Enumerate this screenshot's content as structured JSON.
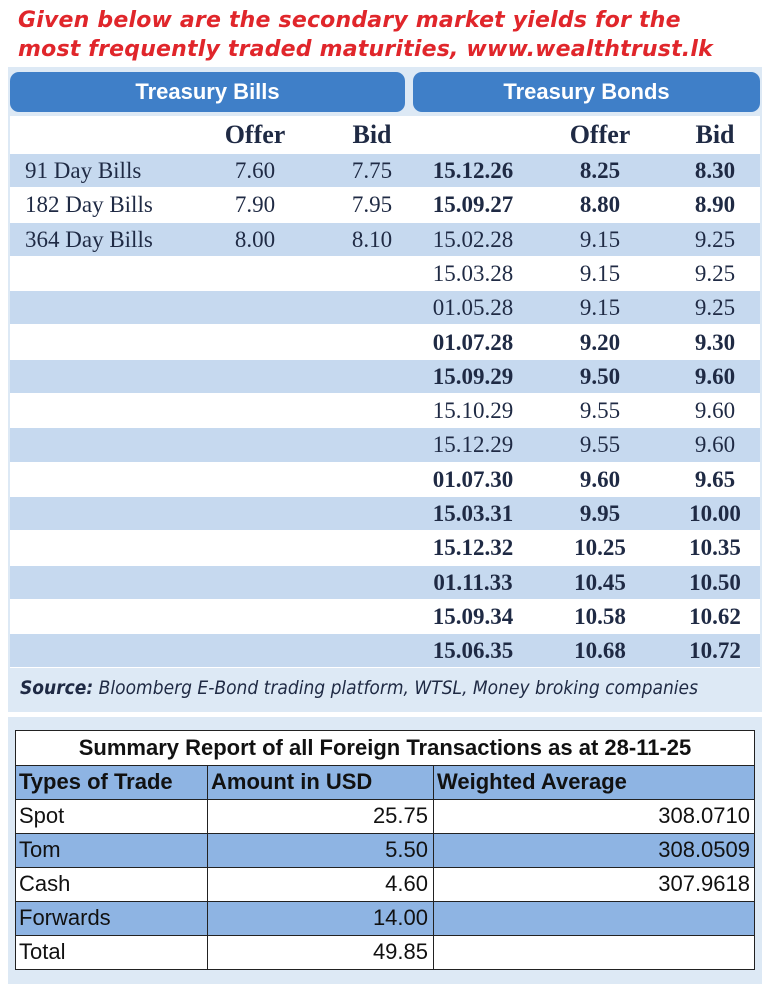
{
  "header": {
    "text": "Given below are the secondary market yields for the most frequently traded maturities, www.wealthtrust.lk"
  },
  "bills": {
    "title": "Treasury Bills",
    "columns": [
      "Offer",
      "Bid"
    ],
    "rows": [
      {
        "label": "91 Day Bills",
        "offer": "7.60",
        "bid": "7.75"
      },
      {
        "label": "182 Day Bills",
        "offer": "7.90",
        "bid": "7.95"
      },
      {
        "label": "364 Day Bills",
        "offer": "8.00",
        "bid": "8.10"
      }
    ]
  },
  "bonds": {
    "title": "Treasury Bonds",
    "columns": [
      "Offer",
      "Bid"
    ],
    "rows": [
      {
        "maturity": "15.12.26",
        "offer": "8.25",
        "bid": "8.30",
        "bold": true
      },
      {
        "maturity": "15.09.27",
        "offer": "8.80",
        "bid": "8.90",
        "bold": true
      },
      {
        "maturity": "15.02.28",
        "offer": "9.15",
        "bid": "9.25",
        "bold": false
      },
      {
        "maturity": "15.03.28",
        "offer": "9.15",
        "bid": "9.25",
        "bold": false
      },
      {
        "maturity": "01.05.28",
        "offer": "9.15",
        "bid": "9.25",
        "bold": false
      },
      {
        "maturity": "01.07.28",
        "offer": "9.20",
        "bid": "9.30",
        "bold": true
      },
      {
        "maturity": "15.09.29",
        "offer": "9.50",
        "bid": "9.60",
        "bold": true
      },
      {
        "maturity": "15.10.29",
        "offer": "9.55",
        "bid": "9.60",
        "bold": false
      },
      {
        "maturity": "15.12.29",
        "offer": "9.55",
        "bid": "9.60",
        "bold": false
      },
      {
        "maturity": "01.07.30",
        "offer": "9.60",
        "bid": "9.65",
        "bold": true
      },
      {
        "maturity": "15.03.31",
        "offer": "9.95",
        "bid": "10.00",
        "bold": true
      },
      {
        "maturity": "15.12.32",
        "offer": "10.25",
        "bid": "10.35",
        "bold": true
      },
      {
        "maturity": "01.11.33",
        "offer": "10.45",
        "bid": "10.50",
        "bold": true
      },
      {
        "maturity": "15.09.34",
        "offer": "10.58",
        "bid": "10.62",
        "bold": true
      },
      {
        "maturity": "15.06.35",
        "offer": "10.68",
        "bid": "10.72",
        "bold": true
      }
    ]
  },
  "source": {
    "label": "Source:",
    "text": "Bloomberg E-Bond trading platform, WTSL, Money broking companies"
  },
  "summary": {
    "title": "Summary Report of all Foreign Transactions as at 28-11-25",
    "columns": [
      "Types of Trade",
      "Amount in USD",
      "Weighted Average"
    ],
    "rows": [
      [
        "Spot",
        "25.75",
        "308.0710"
      ],
      [
        "Tom",
        "5.50",
        "308.0509"
      ],
      [
        "Cash",
        "4.60",
        "307.9618"
      ],
      [
        "Forwards",
        "14.00"
      ],
      [
        "Total",
        "49.85"
      ]
    ]
  }
}
